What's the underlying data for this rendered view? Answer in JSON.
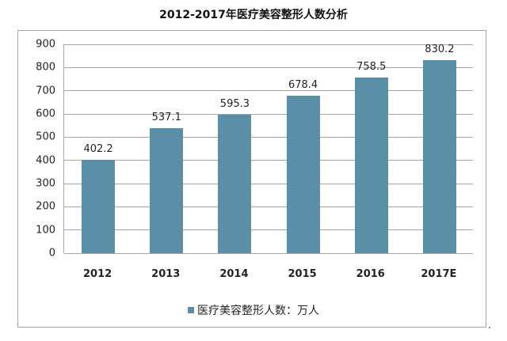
{
  "chart_data": {
    "type": "bar",
    "title": "2012-2017年医疗美容整形人数分析",
    "categories": [
      "2012",
      "2013",
      "2014",
      "2015",
      "2016",
      "2017E"
    ],
    "series": [
      {
        "name": "医疗美容整形人数：万人",
        "values": [
          402.2,
          537.1,
          595.3,
          678.4,
          758.5,
          830.2
        ]
      }
    ],
    "value_labels": [
      "402.2",
      "537.1",
      "595.3",
      "678.4",
      "758.5",
      "830.2"
    ],
    "xlabel": "",
    "ylabel": "",
    "ylim": [
      0,
      900
    ],
    "yticks": [
      "0",
      "100",
      "200",
      "300",
      "400",
      "500",
      "600",
      "700",
      "800",
      "900"
    ],
    "grid": true,
    "legend_position": "bottom",
    "bar_color": "#5b8fa8"
  },
  "legend": {
    "label": "医疗美容整形人数：万人"
  }
}
